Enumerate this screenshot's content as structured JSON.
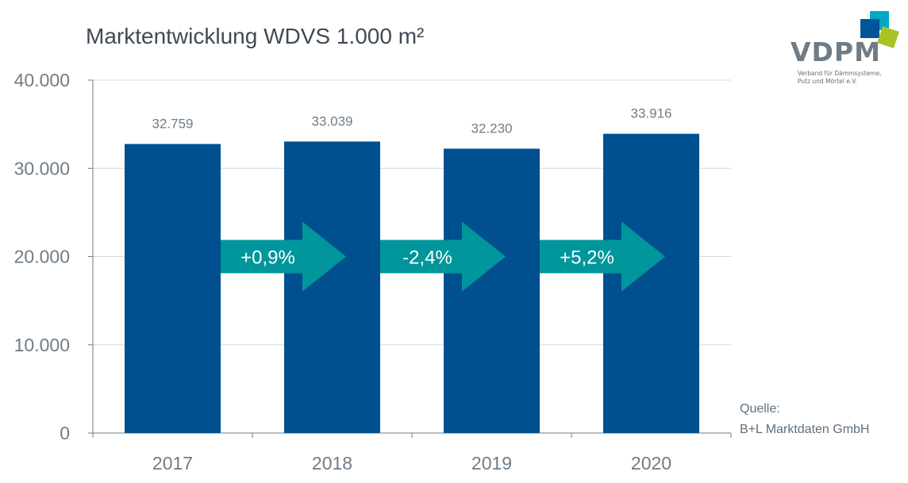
{
  "logo": {
    "name": "VDPM",
    "subtitle_line1": "Verband für Dämmsysteme,",
    "subtitle_line2": "Putz und Mörtel e.V.",
    "colors": [
      "#00a8c6",
      "#00549a",
      "#a8c424"
    ]
  },
  "source": {
    "line1": "Quelle:",
    "line2": "B+L Marktdaten GmbH"
  },
  "chart_data": {
    "type": "bar",
    "title": "Marktentwicklung WDVS 1.000 m²",
    "xlabel": "",
    "ylabel": "",
    "categories": [
      "2017",
      "2018",
      "2019",
      "2020"
    ],
    "values": [
      32759,
      33039,
      32230,
      33916
    ],
    "value_labels": [
      "32.759",
      "33.039",
      "32.230",
      "33.916"
    ],
    "ylim": [
      0,
      40000
    ],
    "yticks": [
      0,
      10000,
      20000,
      30000,
      40000
    ],
    "ytick_labels": [
      "0",
      "10.000",
      "20.000",
      "30.000",
      "40.000"
    ],
    "grid": true,
    "changes": [
      "+0,9%",
      "-2,4%",
      "+5,2%"
    ],
    "colors": {
      "bar": "#00508f",
      "arrow": "#00969b",
      "grid": "#d4d8dc",
      "axis": "#6f7c86",
      "tick_text": "#6f7c86",
      "value_text": "#6f7c86"
    }
  }
}
